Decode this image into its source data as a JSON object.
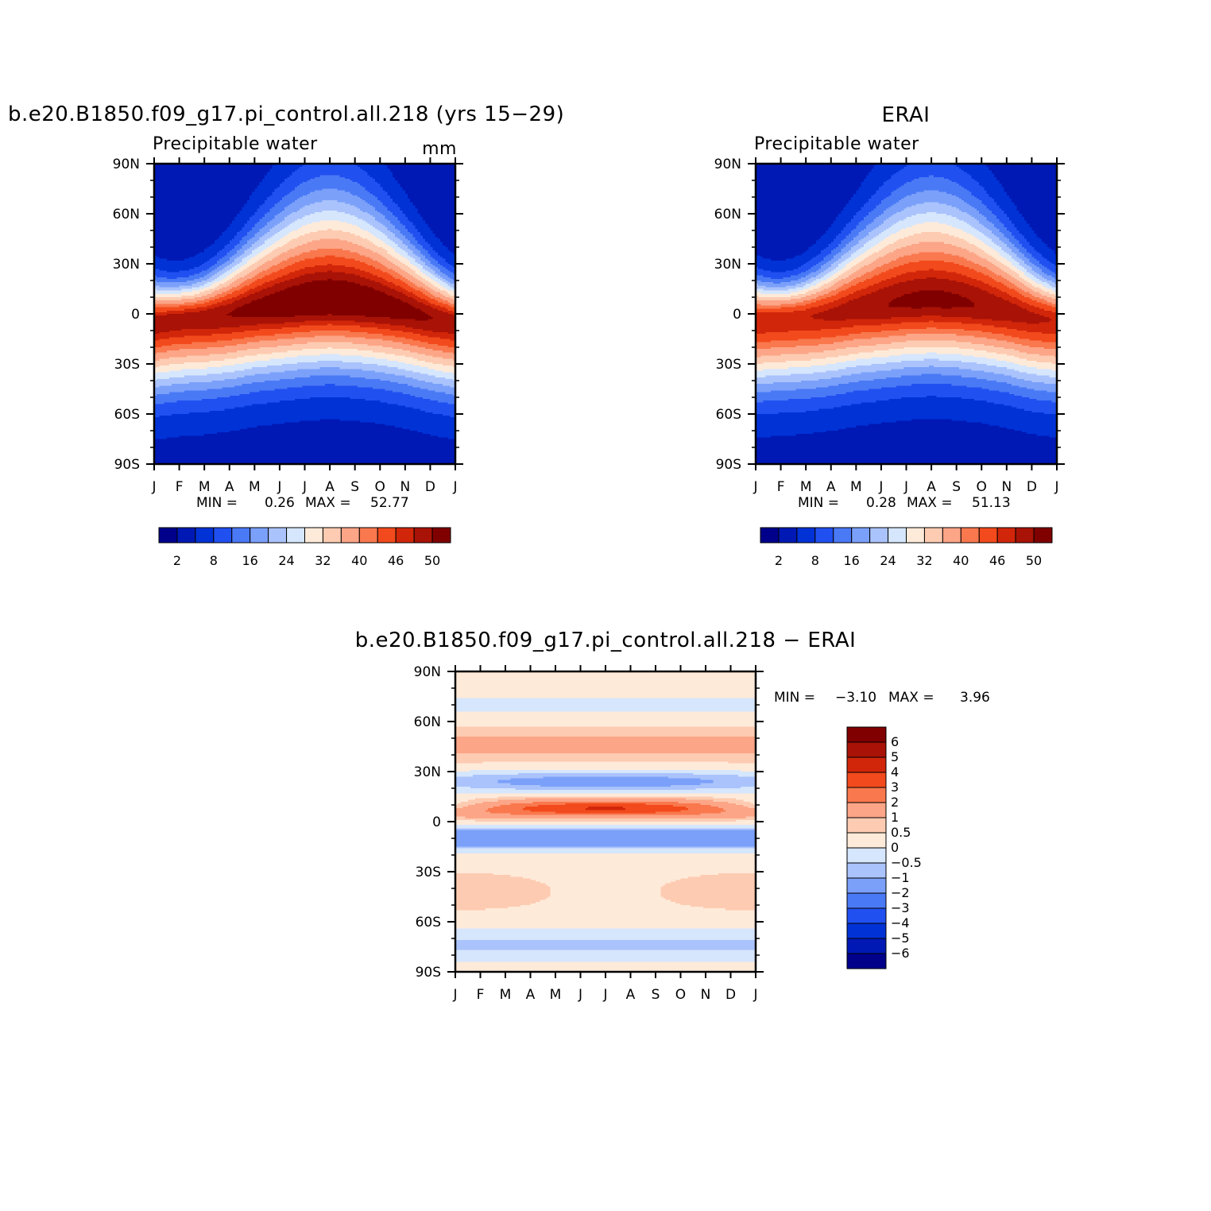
{
  "colors": {
    "model_ramp": [
      "#00008b",
      "#0019b4",
      "#0032d6",
      "#2050f0",
      "#4a79f5",
      "#7ba0fa",
      "#aac3fc",
      "#d5e6fd",
      "#feead9",
      "#fdcbb1",
      "#fca587",
      "#f9784e",
      "#f24a1c",
      "#d1260a",
      "#a91206",
      "#800000"
    ],
    "diff_ramp": [
      "#00008b",
      "#0019b4",
      "#0032d6",
      "#2050f0",
      "#4a79f5",
      "#7ba0fa",
      "#aac3fc",
      "#d5e6fd",
      "#feead9",
      "#fdcbb1",
      "#fca587",
      "#f9784e",
      "#f24a1c",
      "#d1260a",
      "#a91206",
      "#800000"
    ],
    "contour_line": "#000000"
  },
  "months": [
    "J",
    "F",
    "M",
    "A",
    "M",
    "J",
    "J",
    "A",
    "S",
    "O",
    "N",
    "D",
    "J"
  ],
  "lat_labels": [
    "90N",
    "60N",
    "30N",
    "0",
    "30S",
    "60S",
    "90S"
  ],
  "chart_data": [
    {
      "id": "model",
      "type": "heatmap",
      "title": "b.e20.B1850.f09_g17.pi_control.all.218 (yrs 15−29)",
      "subtitle": "Precipitable water",
      "units": "mm",
      "x": [
        "J",
        "F",
        "M",
        "A",
        "M",
        "J",
        "J",
        "A",
        "S",
        "O",
        "N",
        "D",
        "J"
      ],
      "y_range": [
        -90,
        90
      ],
      "stats": {
        "min_label": "MIN =",
        "min": "0.26",
        "max_label": "MAX =",
        "max": "52.77"
      },
      "levels": [
        "2",
        "8",
        "16",
        "24",
        "32",
        "40",
        "46",
        "50"
      ],
      "colorbar_ticks": [
        "2",
        "8",
        "16",
        "24",
        "32",
        "40",
        "46",
        "50"
      ],
      "colorbar_boxes": 16,
      "itcz_peak_lat_by_month": [
        -5,
        -3,
        -2,
        0,
        3,
        5,
        7,
        8,
        7,
        5,
        2,
        -2,
        -5
      ],
      "peak_value": 52.77
    },
    {
      "id": "obs",
      "type": "heatmap",
      "title": "ERAI",
      "subtitle": "Precipitable water",
      "units": "mm",
      "x": [
        "J",
        "F",
        "M",
        "A",
        "M",
        "J",
        "J",
        "A",
        "S",
        "O",
        "N",
        "D",
        "J"
      ],
      "y_range": [
        -90,
        90
      ],
      "stats": {
        "min_label": "MIN =",
        "min": "0.28",
        "max_label": "MAX =",
        "max": "51.13"
      },
      "levels": [
        "2",
        "8",
        "16",
        "24",
        "32",
        "40",
        "46",
        "50"
      ],
      "colorbar_ticks": [
        "2",
        "8",
        "16",
        "24",
        "32",
        "40",
        "46",
        "50"
      ],
      "colorbar_boxes": 16,
      "itcz_peak_lat_by_month": [
        -4,
        -3,
        -2,
        0,
        3,
        5,
        7,
        8,
        7,
        5,
        2,
        -2,
        -4
      ],
      "peak_value": 51.13
    },
    {
      "id": "diff",
      "type": "heatmap",
      "title": "b.e20.B1850.f09_g17.pi_control.all.218 − ERAI",
      "x": [
        "J",
        "F",
        "M",
        "A",
        "M",
        "J",
        "J",
        "A",
        "S",
        "O",
        "N",
        "D",
        "J"
      ],
      "y_range": [
        -90,
        90
      ],
      "stats": {
        "min_label": "MIN =",
        "min": "−3.10",
        "max_label": "MAX =",
        "max": "3.96"
      },
      "levels": [
        "6",
        "5",
        "4",
        "3",
        "2",
        "1",
        "0.5",
        "0",
        "−0.5",
        "−1",
        "−2",
        "−3",
        "−4",
        "−5",
        "−6"
      ],
      "colorbar_boxes": 16
    }
  ]
}
